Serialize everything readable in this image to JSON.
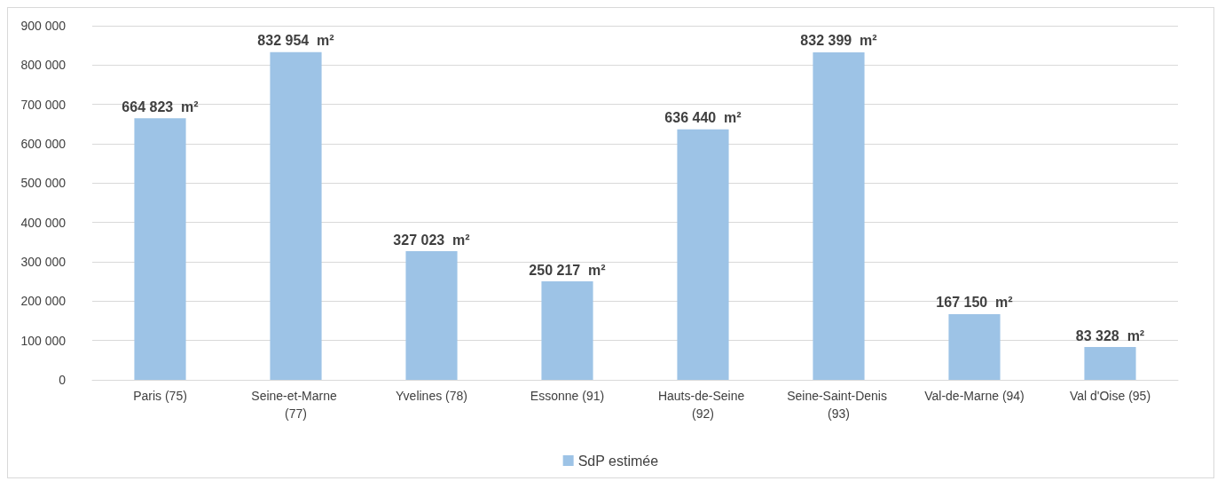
{
  "chart_data": {
    "type": "bar",
    "categories": [
      "Paris (75)",
      "Seine-et-Marne (77)",
      "Yvelines (78)",
      "Essonne (91)",
      "Hauts-de-Seine (92)",
      "Seine-Saint-Denis (93)",
      "Val-de-Marne (94)",
      "Val d'Oise (95)"
    ],
    "series": [
      {
        "name": "SdP estimée",
        "color": "#9dc3e6",
        "values": [
          664823,
          832954,
          327023,
          250217,
          636440,
          832399,
          167150,
          83328
        ],
        "value_labels": [
          "664 823  m²",
          "832 954  m²",
          "327 023  m²",
          "250 217  m²",
          "636 440  m²",
          "832 399  m²",
          "167 150  m²",
          "83 328  m²"
        ]
      }
    ],
    "ylim": [
      0,
      900000
    ],
    "yticks": [
      {
        "value": 0,
        "label": "0"
      },
      {
        "value": 100000,
        "label": "100 000"
      },
      {
        "value": 200000,
        "label": "200 000"
      },
      {
        "value": 300000,
        "label": "300 000"
      },
      {
        "value": 400000,
        "label": "400 000"
      },
      {
        "value": 500000,
        "label": "500 000"
      },
      {
        "value": 600000,
        "label": "600 000"
      },
      {
        "value": 700000,
        "label": "700 000"
      },
      {
        "value": 800000,
        "label": "800 000"
      },
      {
        "value": 900000,
        "label": "900 000"
      }
    ],
    "grid": "y",
    "legend": "bottom"
  }
}
